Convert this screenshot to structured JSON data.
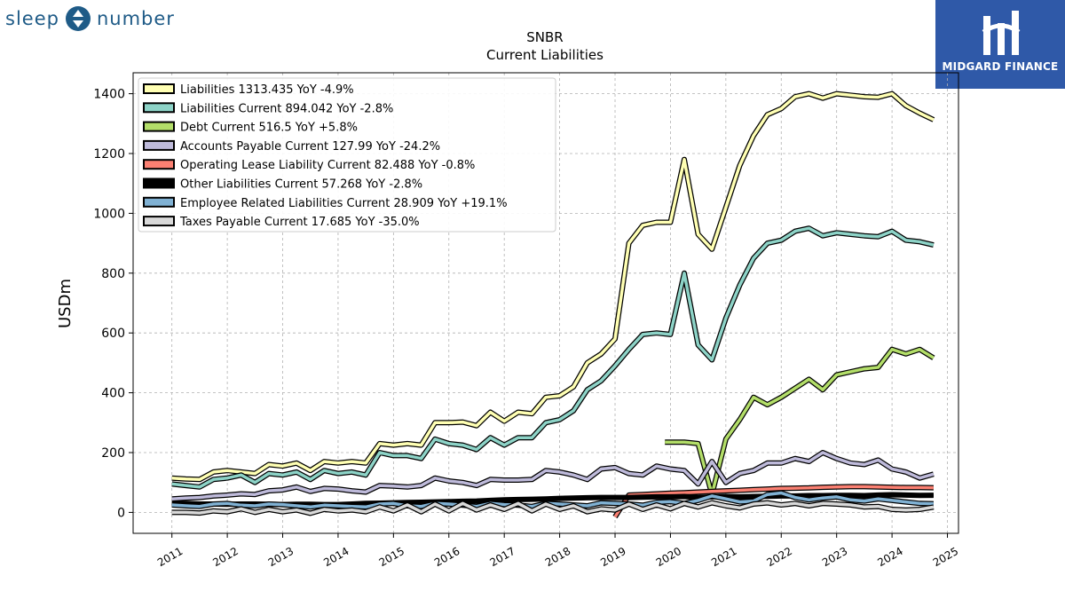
{
  "branding": {
    "left_logo_text_1": "sleep",
    "left_logo_text_2": "number",
    "right_logo_text": "MIDGARD FINANCE",
    "left_color": "#1f5b87",
    "right_bg": "#2f59a8"
  },
  "chart_data": {
    "type": "line",
    "title": "SNBR",
    "subtitle": "Current  Liabilities",
    "ylabel": "USDm",
    "xlabel": "",
    "xlim": [
      2010.3,
      2025.2
    ],
    "ylim": [
      -70,
      1470
    ],
    "x_ticks": [
      "2011",
      "2012",
      "2013",
      "2014",
      "2015",
      "2016",
      "2017",
      "2018",
      "2019",
      "2020",
      "2021",
      "2022",
      "2023",
      "2024",
      "2025"
    ],
    "y_ticks": [
      "0",
      "200",
      "400",
      "600",
      "800",
      "1000",
      "1200",
      "1400"
    ],
    "grid": true,
    "legend_position": "top-left",
    "series": [
      {
        "name": "Liabilities",
        "legend_label": "Liabilities  1313.435 YoY -4.9%",
        "color": "#ffffb3",
        "x": [
          2011.0,
          2011.25,
          2011.5,
          2011.75,
          2012.0,
          2012.25,
          2012.5,
          2012.75,
          2013.0,
          2013.25,
          2013.5,
          2013.75,
          2014.0,
          2014.25,
          2014.5,
          2014.75,
          2015.0,
          2015.25,
          2015.5,
          2015.75,
          2016.0,
          2016.25,
          2016.5,
          2016.75,
          2017.0,
          2017.25,
          2017.5,
          2017.75,
          2018.0,
          2018.25,
          2018.5,
          2018.75,
          2019.0,
          2019.25,
          2019.5,
          2019.75,
          2020.0,
          2020.25,
          2020.5,
          2020.75,
          2021.0,
          2021.25,
          2021.5,
          2021.75,
          2022.0,
          2022.25,
          2022.5,
          2022.75,
          2023.0,
          2023.25,
          2023.5,
          2023.75,
          2024.0,
          2024.25,
          2024.5,
          2024.75
        ],
        "y": [
          115,
          112,
          110,
          135,
          140,
          135,
          130,
          160,
          155,
          165,
          140,
          170,
          165,
          170,
          165,
          230,
          225,
          230,
          225,
          300,
          300,
          302,
          290,
          335,
          305,
          335,
          330,
          385,
          390,
          420,
          500,
          530,
          580,
          900,
          960,
          970,
          970,
          1180,
          930,
          880,
          1020,
          1160,
          1260,
          1330,
          1350,
          1390,
          1400,
          1385,
          1400,
          1395,
          1390,
          1388,
          1400,
          1360,
          1335,
          1313
        ]
      },
      {
        "name": "Liabilities Current",
        "legend_label": "Liabilities Current  894.042 YoY -2.8%",
        "color": "#8dd3c7",
        "x": [
          2011.0,
          2011.25,
          2011.5,
          2011.75,
          2012.0,
          2012.25,
          2012.5,
          2012.75,
          2013.0,
          2013.25,
          2013.5,
          2013.75,
          2014.0,
          2014.25,
          2014.5,
          2014.75,
          2015.0,
          2015.25,
          2015.5,
          2015.75,
          2016.0,
          2016.25,
          2016.5,
          2016.75,
          2017.0,
          2017.25,
          2017.5,
          2017.75,
          2018.0,
          2018.25,
          2018.5,
          2018.75,
          2019.0,
          2019.25,
          2019.5,
          2019.75,
          2020.0,
          2020.25,
          2020.5,
          2020.75,
          2021.0,
          2021.25,
          2021.5,
          2021.75,
          2022.0,
          2022.25,
          2022.5,
          2022.75,
          2023.0,
          2023.25,
          2023.5,
          2023.75,
          2024.0,
          2024.25,
          2024.5,
          2024.75
        ],
        "y": [
          95,
          90,
          85,
          110,
          115,
          125,
          100,
          130,
          125,
          135,
          110,
          140,
          130,
          135,
          125,
          200,
          190,
          190,
          180,
          245,
          230,
          225,
          210,
          250,
          225,
          250,
          250,
          300,
          310,
          340,
          410,
          440,
          490,
          545,
          595,
          600,
          595,
          800,
          560,
          510,
          650,
          760,
          850,
          900,
          910,
          940,
          950,
          925,
          935,
          930,
          925,
          922,
          940,
          910,
          905,
          894
        ]
      },
      {
        "name": "Debt Current",
        "legend_label": "Debt Current  516.5 YoY +5.8%",
        "color": "#b3de69",
        "x": [
          2019.9,
          2020.25,
          2020.5,
          2020.75,
          2021.0,
          2021.25,
          2021.5,
          2021.75,
          2022.0,
          2022.25,
          2022.5,
          2022.75,
          2023.0,
          2023.25,
          2023.5,
          2023.75,
          2024.0,
          2024.25,
          2024.5,
          2024.75
        ],
        "y": [
          235,
          235,
          230,
          60,
          245,
          310,
          385,
          360,
          385,
          415,
          445,
          410,
          460,
          470,
          480,
          485,
          545,
          530,
          545,
          516.5
        ]
      },
      {
        "name": "Accounts Payable Current",
        "legend_label": "Accounts Payable Current  127.99 YoY -24.2%",
        "color": "#bebada",
        "x": [
          2011.0,
          2011.25,
          2011.5,
          2011.75,
          2012.0,
          2012.25,
          2012.5,
          2012.75,
          2013.0,
          2013.25,
          2013.5,
          2013.75,
          2014.0,
          2014.25,
          2014.5,
          2014.75,
          2015.0,
          2015.25,
          2015.5,
          2015.75,
          2016.0,
          2016.25,
          2016.5,
          2016.75,
          2017.0,
          2017.25,
          2017.5,
          2017.75,
          2018.0,
          2018.25,
          2018.5,
          2018.75,
          2019.0,
          2019.25,
          2019.5,
          2019.75,
          2020.0,
          2020.25,
          2020.5,
          2020.75,
          2021.0,
          2021.25,
          2021.5,
          2021.75,
          2022.0,
          2022.25,
          2022.5,
          2022.75,
          2023.0,
          2023.25,
          2023.5,
          2023.75,
          2024.0,
          2024.25,
          2024.5,
          2024.75
        ],
        "y": [
          45,
          48,
          50,
          55,
          58,
          62,
          60,
          72,
          75,
          85,
          70,
          80,
          78,
          72,
          68,
          90,
          88,
          85,
          90,
          115,
          105,
          100,
          90,
          110,
          108,
          108,
          110,
          140,
          135,
          125,
          110,
          145,
          150,
          130,
          125,
          155,
          145,
          140,
          95,
          170,
          100,
          130,
          140,
          165,
          165,
          180,
          170,
          200,
          180,
          165,
          160,
          175,
          145,
          135,
          115,
          128
        ]
      },
      {
        "name": "Operating Lease Liability Current",
        "legend_label": "Operating Lease Liability Current  82.488 YoY -0.8%",
        "color": "#fb8072",
        "x": [
          2019.0,
          2019.25,
          2019.5,
          2019.75,
          2020.0,
          2020.25,
          2020.5,
          2020.75,
          2021.0,
          2021.25,
          2021.5,
          2021.75,
          2022.0,
          2022.25,
          2022.5,
          2022.75,
          2023.0,
          2023.25,
          2023.5,
          2023.75,
          2024.0,
          2024.25,
          2024.5,
          2024.75
        ],
        "y": [
          -15,
          58,
          60,
          62,
          64,
          66,
          68,
          70,
          72,
          74,
          76,
          78,
          80,
          81,
          82,
          84,
          85,
          86,
          86,
          85,
          84,
          83,
          83,
          82.5
        ]
      },
      {
        "name": "Other Liabilities Current",
        "legend_label": "Other Liabilities Current  57.268 YoY -2.8%",
        "color": "#000000",
        "x": [
          2011.0,
          2011.25,
          2011.5,
          2011.75,
          2012.0,
          2012.25,
          2012.5,
          2012.75,
          2013.0,
          2013.25,
          2013.5,
          2013.75,
          2014.0,
          2014.25,
          2014.5,
          2014.75,
          2015.0,
          2015.25,
          2015.5,
          2015.75,
          2016.0,
          2016.25,
          2016.5,
          2016.75,
          2017.0,
          2017.25,
          2017.5,
          2017.75,
          2018.0,
          2018.25,
          2018.5,
          2018.75,
          2019.0,
          2019.25,
          2019.5,
          2019.75,
          2020.0,
          2020.25,
          2020.5,
          2020.75,
          2021.0,
          2021.25,
          2021.5,
          2021.75,
          2022.0,
          2022.25,
          2022.5,
          2022.75,
          2023.0,
          2023.25,
          2023.5,
          2023.75,
          2024.0,
          2024.25,
          2024.5,
          2024.75
        ],
        "y": [
          30,
          30,
          28,
          28,
          27,
          28,
          28,
          27,
          26,
          27,
          27,
          26,
          26,
          28,
          30,
          31,
          32,
          33,
          34,
          35,
          36,
          37,
          38,
          40,
          42,
          43,
          44,
          45,
          47,
          48,
          49,
          50,
          50,
          50,
          51,
          52,
          52,
          53,
          50,
          52,
          53,
          52,
          53,
          54,
          55,
          55,
          56,
          56,
          57,
          57,
          56,
          58,
          59,
          58,
          57,
          57.3
        ]
      },
      {
        "name": "Employee Related Liabilities Current",
        "legend_label": "Employee Related Liabilities Current  28.909 YoY +19.1%",
        "color": "#80b1d3",
        "x": [
          2011.0,
          2011.25,
          2011.5,
          2011.75,
          2012.0,
          2012.25,
          2012.5,
          2012.75,
          2013.0,
          2013.25,
          2013.5,
          2013.75,
          2014.0,
          2014.25,
          2014.5,
          2014.75,
          2015.0,
          2015.25,
          2015.5,
          2015.75,
          2016.0,
          2016.25,
          2016.5,
          2016.75,
          2017.0,
          2017.25,
          2017.5,
          2017.75,
          2018.0,
          2018.25,
          2018.5,
          2018.75,
          2019.0,
          2019.25,
          2019.5,
          2019.75,
          2020.0,
          2020.25,
          2020.5,
          2020.75,
          2021.0,
          2021.25,
          2021.5,
          2021.75,
          2022.0,
          2022.25,
          2022.5,
          2022.75,
          2023.0,
          2023.25,
          2023.5,
          2023.75,
          2024.0,
          2024.25,
          2024.5,
          2024.75
        ],
        "y": [
          25,
          22,
          20,
          28,
          30,
          24,
          22,
          28,
          26,
          22,
          18,
          24,
          22,
          20,
          18,
          28,
          30,
          22,
          20,
          30,
          28,
          24,
          20,
          30,
          26,
          24,
          20,
          30,
          28,
          25,
          22,
          32,
          30,
          28,
          24,
          34,
          36,
          30,
          40,
          55,
          45,
          35,
          38,
          60,
          65,
          50,
          42,
          48,
          52,
          42,
          38,
          45,
          40,
          35,
          30,
          29
        ]
      },
      {
        "name": "Taxes Payable Current",
        "legend_label": "Taxes Payable Current  17.685 YoY -35.0%",
        "color": "#d9d9d9",
        "x": [
          2011.0,
          2011.25,
          2011.5,
          2011.75,
          2012.0,
          2012.25,
          2012.5,
          2012.75,
          2013.0,
          2013.25,
          2013.5,
          2013.75,
          2014.0,
          2014.25,
          2014.5,
          2014.75,
          2015.0,
          2015.25,
          2015.5,
          2015.75,
          2016.0,
          2016.25,
          2016.5,
          2016.75,
          2017.0,
          2017.25,
          2017.5,
          2017.75,
          2018.0,
          2018.25,
          2018.5,
          2018.75,
          2019.0,
          2019.25,
          2019.5,
          2019.75,
          2020.0,
          2020.25,
          2020.5,
          2020.75,
          2021.0,
          2021.25,
          2021.5,
          2021.75,
          2022.0,
          2022.25,
          2022.5,
          2022.75,
          2023.0,
          2023.25,
          2023.5,
          2023.75,
          2024.0,
          2024.25,
          2024.5,
          2024.75
        ],
        "y": [
          0,
          0,
          -2,
          5,
          2,
          12,
          0,
          10,
          2,
          8,
          -3,
          10,
          5,
          8,
          2,
          18,
          5,
          25,
          2,
          28,
          5,
          30,
          8,
          25,
          10,
          30,
          5,
          28,
          10,
          22,
          2,
          12,
          8,
          28,
          10,
          25,
          12,
          30,
          18,
          32,
          22,
          15,
          28,
          32,
          25,
          30,
          22,
          30,
          28,
          25,
          18,
          20,
          10,
          8,
          10,
          17.7
        ]
      }
    ]
  }
}
